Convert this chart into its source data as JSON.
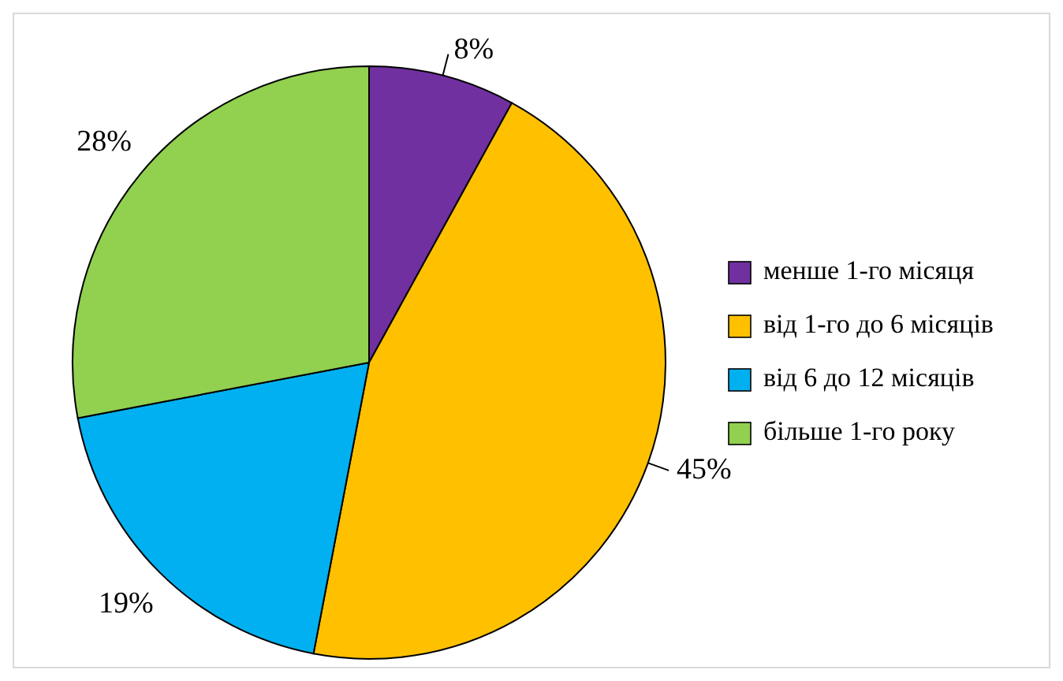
{
  "chart_data": {
    "type": "pie",
    "categories": [
      "менше 1-го місяця",
      "від 1-го до 6 місяців",
      "від 6 до 12 місяців",
      "більше 1-го року"
    ],
    "values": [
      8,
      45,
      19,
      28
    ],
    "colors": [
      "#7030a0",
      "#ffc000",
      "#00b0f0",
      "#92d050"
    ],
    "value_labels": [
      "8%",
      "45%",
      "19%",
      "28%"
    ],
    "legend": "right"
  }
}
